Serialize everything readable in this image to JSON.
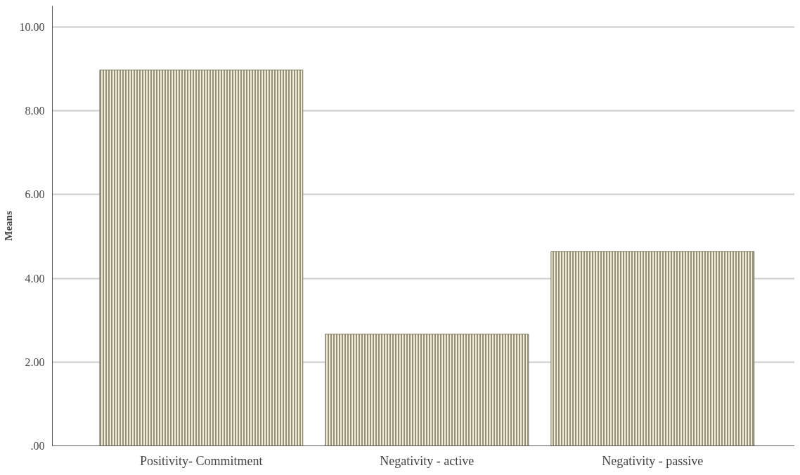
{
  "chart_data": {
    "type": "bar",
    "ylabel": "Means",
    "categories": [
      "Positivity- Commitment",
      "Negativity - active",
      "Negativity - passive"
    ],
    "values": [
      8.97,
      2.67,
      4.64
    ],
    "color": "#7d7a66",
    "ylim": [
      0,
      10.5
    ],
    "yticks": [
      {
        "value": 0,
        "label": ".00"
      },
      {
        "value": 2,
        "label": "2.00"
      },
      {
        "value": 4,
        "label": "4.00"
      },
      {
        "value": 6,
        "label": "6.00"
      },
      {
        "value": 8,
        "label": "8.00"
      },
      {
        "value": 10,
        "label": "10.00"
      }
    ],
    "grid": "y"
  }
}
